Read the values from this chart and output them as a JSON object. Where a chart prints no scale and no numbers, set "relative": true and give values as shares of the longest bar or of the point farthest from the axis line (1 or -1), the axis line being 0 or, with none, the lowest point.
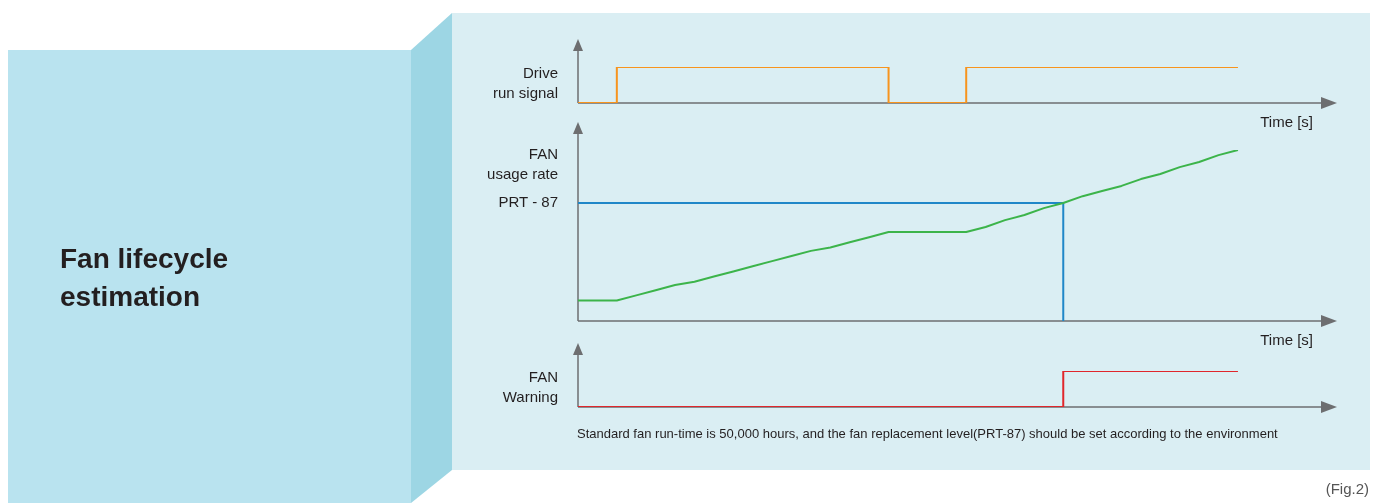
{
  "chart_data": [
    {
      "type": "other",
      "title": "Fan lifecycle estimation"
    },
    {
      "type": "step",
      "ylabel": "Drive\nrun signal",
      "xlabel": "Time [s]",
      "relative": true,
      "marker": "none",
      "categories": [
        null,
        null,
        null,
        null,
        null,
        null,
        null,
        null,
        null,
        null,
        null,
        null,
        null,
        null,
        null,
        null,
        null,
        null,
        null,
        null,
        null,
        null,
        null,
        null,
        null,
        null,
        null,
        null,
        null,
        null,
        null,
        null,
        null,
        null,
        null,
        null,
        null,
        null,
        null,
        null
      ],
      "series": [
        {
          "color": "#f7941d",
          "values": [
            0,
            0,
            1,
            1,
            1,
            1,
            1,
            1,
            1,
            1,
            1,
            1,
            1,
            1,
            1,
            1,
            0,
            0,
            0,
            0,
            1,
            1,
            1,
            1,
            1,
            1,
            1,
            1,
            1,
            1,
            1,
            1,
            1,
            1,
            1,
            null,
            null,
            null,
            null,
            null
          ]
        }
      ]
    },
    {
      "type": "line",
      "ylabel": "FAN\nusage rate",
      "xlabel": "Time [s]",
      "relative": true,
      "marker": "none",
      "categories": [
        null,
        null,
        null,
        null,
        null,
        null,
        null,
        null,
        null,
        null,
        null,
        null,
        null,
        null,
        null,
        null,
        null,
        null,
        null,
        null,
        null,
        null,
        null,
        null,
        null,
        null,
        null,
        null,
        null,
        null,
        null,
        null,
        null,
        null,
        null,
        null,
        null,
        null,
        null,
        null
      ],
      "series": [
        {
          "color": "#3cb44a",
          "values": [
            0.12,
            0.12,
            0.12,
            0.15,
            0.18,
            0.21,
            0.23,
            0.26,
            0.29,
            0.32,
            0.35,
            0.38,
            0.41,
            0.43,
            0.46,
            0.49,
            0.52,
            0.52,
            0.52,
            0.52,
            0.52,
            0.55,
            0.59,
            0.62,
            0.66,
            0.69,
            0.73,
            0.76,
            0.79,
            0.83,
            0.86,
            0.9,
            0.93,
            0.97,
            1,
            null,
            null,
            null,
            null,
            null
          ]
        },
        {
          "type": "step",
          "name": "PRT - 87",
          "color": "#1f87c8",
          "values": [
            0.69,
            0.69,
            0.69,
            0.69,
            0.69,
            0.69,
            0.69,
            0.69,
            0.69,
            0.69,
            0.69,
            0.69,
            0.69,
            0.69,
            0.69,
            0.69,
            0.69,
            0.69,
            0.69,
            0.69,
            0.69,
            0.69,
            0.69,
            0.69,
            0.69,
            0,
            null,
            null,
            null,
            null,
            null,
            null,
            null,
            null,
            null,
            null,
            null,
            null,
            null,
            null
          ]
        }
      ]
    },
    {
      "type": "step",
      "ylabel": "FAN\nWarning",
      "relative": true,
      "marker": "none",
      "categories": [
        null,
        null,
        null,
        null,
        null,
        null,
        null,
        null,
        null,
        null,
        null,
        null,
        null,
        null,
        null,
        null,
        null,
        null,
        null,
        null,
        null,
        null,
        null,
        null,
        null,
        null,
        null,
        null,
        null,
        null,
        null,
        null,
        null,
        null,
        null,
        null,
        null,
        null,
        null,
        null
      ],
      "series": [
        {
          "color": "#e0262b",
          "values": [
            0,
            0,
            0,
            0,
            0,
            0,
            0,
            0,
            0,
            0,
            0,
            0,
            0,
            0,
            0,
            0,
            0,
            0,
            0,
            0,
            0,
            0,
            0,
            0,
            0,
            1,
            1,
            1,
            1,
            1,
            1,
            1,
            1,
            1,
            1,
            null,
            null,
            null,
            null,
            null
          ]
        }
      ],
      "annotations": [
        "Standard fan run-time is 50,000 hours, and the fan replacement level(PRT-87) should be set according to the environment",
        "(Fig.2)"
      ]
    }
  ]
}
